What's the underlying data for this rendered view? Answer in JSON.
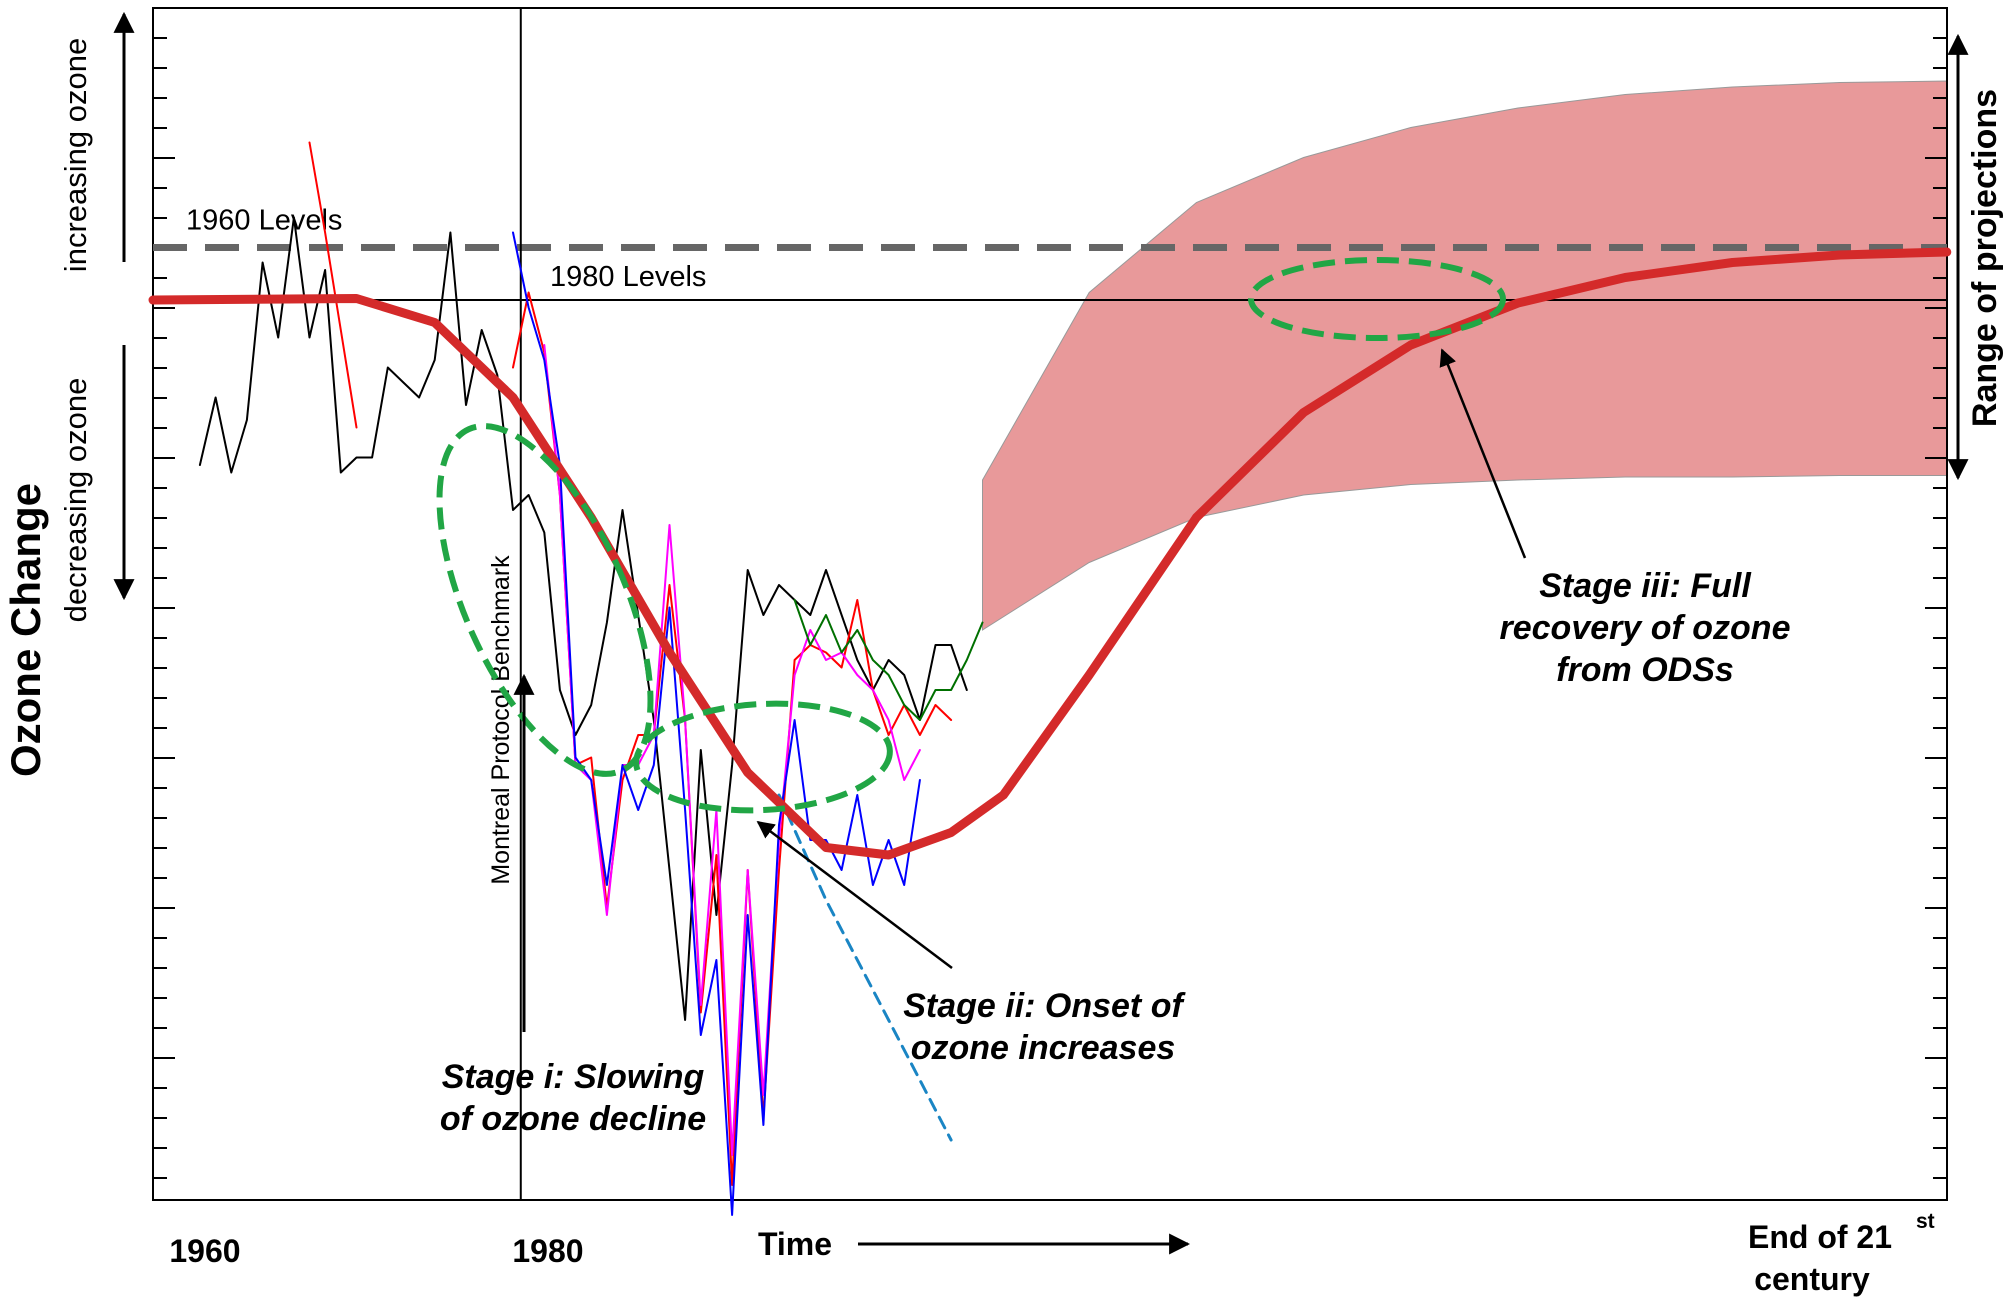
{
  "chart_data": {
    "type": "line",
    "ylabel": "Ozone Change",
    "ylabel_up": "increasing ozone",
    "ylabel_down": "decreasing ozone",
    "xlabel": "Time",
    "x_ticks": [
      {
        "x": 1960,
        "label": "1960"
      },
      {
        "x": 1980,
        "label": "1980"
      }
    ],
    "x_end_label_line1": "End of 21",
    "x_end_label_sup": "st",
    "x_end_label_line2": "century",
    "right_label": "Range of projections",
    "xlim": [
      1957,
      2100
    ],
    "ylim": [
      -9,
      1
    ],
    "reference_lines": [
      {
        "name": "1960 Levels",
        "y": 0.35,
        "style": "dashed",
        "color": "#666666"
      },
      {
        "name": "1980 Levels",
        "y": 0,
        "style": "solid",
        "color": "#000000"
      }
    ],
    "benchmark": {
      "label": "Montreal Protocol Benchmark",
      "x": 1980.5
    },
    "stages": [
      {
        "line1": "Stage i: Slowing",
        "line2": "of ozone decline",
        "line3": ""
      },
      {
        "line1": "Stage ii: Onset of",
        "line2": "ozone increases",
        "line3": ""
      },
      {
        "line1": "Stage iii: Full",
        "line2": "recovery of ozone",
        "line3": "from ODSs"
      }
    ],
    "projection_start_x": 2010,
    "projection_band": {
      "x": [
        2010,
        2020,
        2030,
        2040,
        2050,
        2060,
        2070,
        2080,
        2090,
        2100
      ],
      "upper": [
        -1.2,
        0.05,
        0.65,
        0.95,
        1.15,
        1.28,
        1.37,
        1.42,
        1.45,
        1.46
      ],
      "lower": [
        -2.2,
        -1.75,
        -1.45,
        -1.3,
        -1.23,
        -1.2,
        -1.18,
        -1.18,
        -1.17,
        -1.17
      ],
      "color": "#e8999a"
    },
    "series": [
      {
        "color": "#d42a2a",
        "width": 9,
        "x": [
          1957,
          1970,
          1975,
          1980,
          1985,
          1990,
          1995,
          2000,
          2004,
          2008,
          2012,
          2020,
          2030,
          2040,
          2050,
          2060,
          2070,
          2080,
          2090,
          2100
        ],
        "y": [
          0,
          0.01,
          -0.15,
          -0.65,
          -1.45,
          -2.35,
          -3.15,
          -3.65,
          -3.7,
          -3.55,
          -3.3,
          -2.5,
          -1.45,
          -0.75,
          -0.3,
          -0.02,
          0.15,
          0.25,
          0.3,
          0.32
        ]
      },
      {
        "color": "#000000",
        "width": 2,
        "x": [
          1960,
          1961,
          1962,
          1963,
          1964,
          1965,
          1966,
          1967,
          1968,
          1969,
          1970,
          1971,
          1972,
          1973,
          1974,
          1975,
          1976,
          1977,
          1978,
          1979,
          1980,
          1981,
          1982,
          1983,
          1984,
          1985,
          1986,
          1987,
          1988,
          1989,
          1990,
          1991,
          1992,
          1993,
          1994,
          1995,
          1996,
          1997,
          1998,
          1999,
          2000,
          2001,
          2002,
          2003,
          2004,
          2005,
          2006,
          2007,
          2008,
          2009
        ],
        "y": [
          -1.1,
          -0.65,
          -1.15,
          -0.8,
          0.25,
          -0.25,
          0.55,
          -0.25,
          0.2,
          -1.15,
          -1.05,
          -1.05,
          -0.45,
          -0.55,
          -0.65,
          -0.4,
          0.45,
          -0.7,
          -0.2,
          -0.5,
          -1.4,
          -1.3,
          -1.55,
          -2.6,
          -2.9,
          -2.7,
          -2.15,
          -1.4,
          -2.1,
          -2.8,
          -3.8,
          -4.8,
          -3.0,
          -4.1,
          -3.1,
          -1.8,
          -2.1,
          -1.9,
          -2.0,
          -2.1,
          -1.8,
          -2.1,
          -2.4,
          -2.6,
          -2.4,
          -2.5,
          -2.8,
          -2.3,
          -2.3,
          -2.6
        ]
      },
      {
        "color": "#ff0000",
        "width": 2,
        "x": [
          1967,
          1968,
          1969,
          1970
        ],
        "y": [
          1.05,
          0.45,
          -0.2,
          -0.85
        ]
      },
      {
        "color": "#ff0000",
        "width": 2,
        "x": [
          1980,
          1981,
          1982,
          1983,
          1984,
          1985,
          1986,
          1987,
          1988,
          1989,
          1990,
          1991,
          1992,
          1993,
          1994,
          1995,
          1996,
          1997,
          1998,
          1999,
          2000,
          2001,
          2002,
          2003,
          2004,
          2005,
          2006,
          2007,
          2008
        ],
        "y": [
          -0.45,
          0.05,
          -0.35,
          -1.3,
          -3.1,
          -3.05,
          -4.05,
          -3.2,
          -2.9,
          -2.9,
          -1.9,
          -2.8,
          -4.75,
          -3.7,
          -5.9,
          -3.8,
          -5.45,
          -3.8,
          -2.4,
          -2.3,
          -2.35,
          -2.45,
          -2.0,
          -2.6,
          -2.9,
          -2.7,
          -2.9,
          -2.7,
          -2.8
        ]
      },
      {
        "color": "#ff00ff",
        "width": 2,
        "x": [
          1982,
          1983,
          1984,
          1985,
          1986,
          1987,
          1988,
          1989,
          1990,
          1991,
          1992,
          1993,
          1994,
          1995,
          1996,
          1997,
          1998,
          1999,
          2000,
          2001,
          2002,
          2003,
          2004,
          2005,
          2006
        ],
        "y": [
          -0.3,
          -1.3,
          -3.1,
          -3.2,
          -4.1,
          -3.1,
          -3.1,
          -2.9,
          -1.5,
          -2.8,
          -4.7,
          -3.4,
          -5.7,
          -3.8,
          -5.3,
          -3.6,
          -2.5,
          -2.2,
          -2.4,
          -2.35,
          -2.5,
          -2.6,
          -2.8,
          -3.2,
          -3.0
        ]
      },
      {
        "color": "#0000ff",
        "width": 2,
        "x": [
          1980,
          1981,
          1982,
          1983,
          1984,
          1985,
          1986,
          1987,
          1988,
          1989,
          1990,
          1991,
          1992,
          1993,
          1994,
          1995,
          1996,
          1997,
          1998,
          1999,
          2000,
          2001,
          2002,
          2003,
          2004,
          2005,
          2006
        ],
        "y": [
          0.45,
          -0.05,
          -0.4,
          -1.1,
          -3.05,
          -3.2,
          -3.9,
          -3.1,
          -3.4,
          -3.1,
          -2.05,
          -3.4,
          -4.9,
          -4.4,
          -6.1,
          -4.1,
          -5.5,
          -3.5,
          -2.8,
          -3.6,
          -3.6,
          -3.8,
          -3.3,
          -3.9,
          -3.6,
          -3.9,
          -3.2
        ]
      },
      {
        "color": "#007000",
        "width": 2,
        "x": [
          1998,
          1999,
          2000,
          2001,
          2002,
          2003,
          2004,
          2005,
          2006,
          2007,
          2008,
          2009,
          2010
        ],
        "y": [
          -2.0,
          -2.3,
          -2.1,
          -2.35,
          -2.2,
          -2.4,
          -2.5,
          -2.7,
          -2.8,
          -2.6,
          -2.6,
          -2.4,
          -2.15
        ]
      },
      {
        "color": "#1a85c4",
        "width": 3,
        "dashed": true,
        "x": [
          1997,
          2000,
          2004,
          2008
        ],
        "y": [
          -3.3,
          -4.0,
          -4.8,
          -5.6
        ]
      }
    ]
  }
}
